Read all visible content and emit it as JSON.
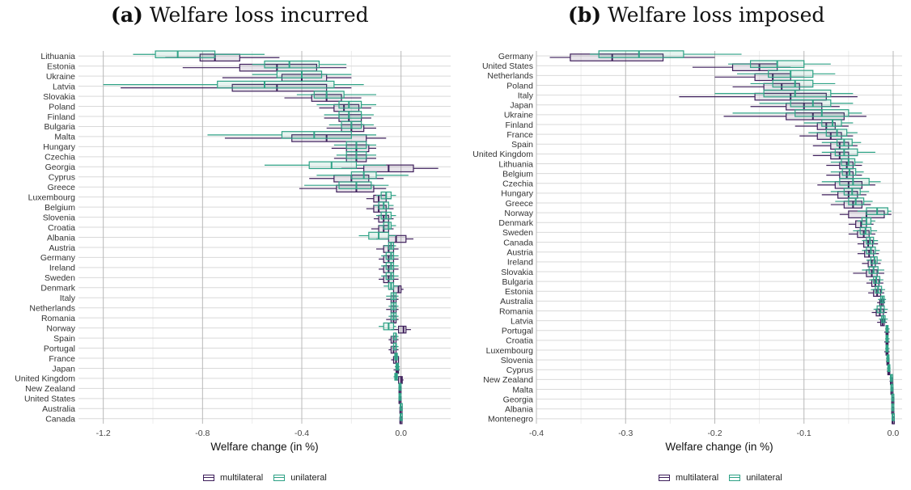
{
  "colors": {
    "multilateral": "#3e1f5b",
    "unilateral": "#2fa286",
    "grid": "#d9d9d9",
    "grid_major": "#b8b8b8"
  },
  "panels": {
    "a": {
      "tag": "(a)",
      "title": "Welfare loss incurred"
    },
    "b": {
      "tag": "(b)",
      "title": "Welfare loss imposed"
    }
  },
  "legend": {
    "multilateral": "multilateral",
    "unilateral": "unilateral"
  },
  "chart_data": [
    {
      "type": "boxplot",
      "title": "(a) Welfare loss incurred",
      "xlabel": "Welfare change (in %)",
      "xlim": [
        -1.3,
        0.2
      ],
      "xticks": [
        -1.2,
        -0.8,
        -0.4,
        0.0
      ],
      "xtick_labels": [
        "-1.2",
        "-0.8",
        "-0.4",
        "0.0"
      ],
      "grid": true,
      "legend_position": "bottom",
      "series_names": [
        "multilateral",
        "unilateral"
      ],
      "categories": [
        "Lithuania",
        "Estonia",
        "Ukraine",
        "Latvia",
        "Slovakia",
        "Poland",
        "Finland",
        "Bulgaria",
        "Malta",
        "Hungary",
        "Czechia",
        "Georgia",
        "Cyprus",
        "Greece",
        "Luxembourg",
        "Belgium",
        "Slovenia",
        "Croatia",
        "Albania",
        "Austria",
        "Germany",
        "Ireland",
        "Sweden",
        "Denmark",
        "Italy",
        "Netherlands",
        "Romania",
        "Norway",
        "Spain",
        "Portugal",
        "France",
        "Japan",
        "United Kingdom",
        "New Zealand",
        "United States",
        "Australia",
        "Canada"
      ],
      "multilateral": [
        [
          -0.95,
          -0.81,
          -0.75,
          -0.65,
          -0.49
        ],
        [
          -0.88,
          -0.65,
          -0.5,
          -0.34,
          -0.22
        ],
        [
          -0.72,
          -0.48,
          -0.4,
          -0.3,
          -0.2
        ],
        [
          -1.13,
          -0.68,
          -0.5,
          -0.3,
          -0.2
        ],
        [
          -0.47,
          -0.36,
          -0.3,
          -0.24,
          -0.16
        ],
        [
          -0.33,
          -0.27,
          -0.23,
          -0.17,
          -0.12
        ],
        [
          -0.31,
          -0.25,
          -0.21,
          -0.16,
          -0.12
        ],
        [
          -0.3,
          -0.24,
          -0.2,
          -0.15,
          -0.1
        ],
        [
          -0.71,
          -0.44,
          -0.3,
          -0.14,
          -0.06
        ],
        [
          -0.28,
          -0.22,
          -0.18,
          -0.13,
          -0.1
        ],
        [
          -0.27,
          -0.22,
          -0.18,
          -0.14,
          -0.1
        ],
        [
          -0.24,
          -0.15,
          -0.05,
          0.05,
          0.15
        ],
        [
          -0.37,
          -0.27,
          -0.2,
          -0.13,
          -0.07
        ],
        [
          -0.41,
          -0.26,
          -0.18,
          -0.11,
          -0.06
        ],
        [
          -0.14,
          -0.11,
          -0.09,
          -0.06,
          -0.04
        ],
        [
          -0.14,
          -0.11,
          -0.09,
          -0.06,
          -0.03
        ],
        [
          -0.11,
          -0.09,
          -0.07,
          -0.05,
          -0.03
        ],
        [
          -0.12,
          -0.09,
          -0.07,
          -0.05,
          -0.03
        ],
        [
          -0.1,
          -0.05,
          -0.02,
          0.02,
          0.05
        ],
        [
          -0.1,
          -0.07,
          -0.05,
          -0.03,
          -0.01
        ],
        [
          -0.09,
          -0.07,
          -0.05,
          -0.03,
          -0.01
        ],
        [
          -0.09,
          -0.07,
          -0.05,
          -0.03,
          -0.01
        ],
        [
          -0.09,
          -0.07,
          -0.05,
          -0.03,
          -0.01
        ],
        [
          -0.05,
          -0.03,
          -0.01,
          0.0,
          0.01
        ],
        [
          -0.06,
          -0.04,
          -0.03,
          -0.02,
          -0.01
        ],
        [
          -0.06,
          -0.04,
          -0.03,
          -0.02,
          -0.01
        ],
        [
          -0.06,
          -0.04,
          -0.03,
          -0.02,
          -0.01
        ],
        [
          -0.04,
          -0.01,
          0.01,
          0.02,
          0.04
        ],
        [
          -0.05,
          -0.04,
          -0.03,
          -0.02,
          -0.01
        ],
        [
          -0.05,
          -0.04,
          -0.03,
          -0.02,
          -0.01
        ],
        [
          -0.04,
          -0.03,
          -0.02,
          -0.01,
          -0.01
        ],
        [
          -0.03,
          -0.02,
          -0.015,
          -0.01,
          -0.005
        ],
        [
          -0.02,
          -0.01,
          0.0,
          0.005,
          0.01
        ],
        [
          -0.01,
          -0.008,
          -0.006,
          -0.004,
          -0.002
        ],
        [
          -0.01,
          -0.008,
          -0.006,
          -0.004,
          -0.002
        ],
        [
          -0.005,
          -0.004,
          -0.003,
          -0.002,
          -0.001
        ],
        [
          -0.005,
          -0.004,
          -0.003,
          -0.002,
          -0.001
        ]
      ],
      "unilateral": [
        [
          -1.08,
          -0.99,
          -0.9,
          -0.75,
          -0.55
        ],
        [
          -0.6,
          -0.55,
          -0.45,
          -0.33,
          -0.22
        ],
        [
          -0.6,
          -0.5,
          -0.4,
          -0.32,
          -0.2
        ],
        [
          -1.2,
          -0.74,
          -0.55,
          -0.27,
          -0.15
        ],
        [
          -0.42,
          -0.35,
          -0.3,
          -0.23,
          -0.1
        ],
        [
          -0.34,
          -0.25,
          -0.21,
          -0.16,
          -0.1
        ],
        [
          -0.31,
          -0.25,
          -0.21,
          -0.16,
          -0.11
        ],
        [
          -0.29,
          -0.24,
          -0.2,
          -0.16,
          -0.11
        ],
        [
          -0.78,
          -0.48,
          -0.35,
          -0.2,
          -0.1
        ],
        [
          -0.27,
          -0.22,
          -0.18,
          -0.14,
          -0.1
        ],
        [
          -0.26,
          -0.22,
          -0.18,
          -0.14,
          -0.1
        ],
        [
          -0.55,
          -0.37,
          -0.28,
          -0.18,
          -0.06
        ],
        [
          -0.34,
          -0.2,
          -0.15,
          -0.1,
          0.03
        ],
        [
          -0.39,
          -0.25,
          -0.18,
          -0.12,
          -0.05
        ],
        [
          -0.1,
          -0.08,
          -0.06,
          -0.04,
          -0.02
        ],
        [
          -0.11,
          -0.09,
          -0.07,
          -0.05,
          -0.03
        ],
        [
          -0.1,
          -0.08,
          -0.06,
          -0.04,
          -0.02
        ],
        [
          -0.09,
          -0.07,
          -0.05,
          -0.04,
          -0.02
        ],
        [
          -0.17,
          -0.13,
          -0.09,
          -0.05,
          -0.02
        ],
        [
          -0.07,
          -0.05,
          -0.04,
          -0.03,
          -0.02
        ],
        [
          -0.08,
          -0.06,
          -0.04,
          -0.03,
          -0.01
        ],
        [
          -0.08,
          -0.06,
          -0.04,
          -0.03,
          -0.01
        ],
        [
          -0.08,
          -0.06,
          -0.04,
          -0.03,
          -0.01
        ],
        [
          -0.07,
          -0.05,
          -0.04,
          -0.03,
          -0.01
        ],
        [
          -0.06,
          -0.04,
          -0.03,
          -0.02,
          -0.01
        ],
        [
          -0.05,
          -0.04,
          -0.03,
          -0.02,
          -0.01
        ],
        [
          -0.05,
          -0.04,
          -0.03,
          -0.02,
          -0.01
        ],
        [
          -0.09,
          -0.07,
          -0.05,
          -0.03,
          -0.02
        ],
        [
          -0.04,
          -0.03,
          -0.02,
          -0.02,
          -0.01
        ],
        [
          -0.04,
          -0.03,
          -0.02,
          -0.02,
          -0.01
        ],
        [
          -0.03,
          -0.025,
          -0.02,
          -0.015,
          -0.01
        ],
        [
          -0.025,
          -0.02,
          -0.015,
          -0.01,
          -0.005
        ],
        [
          -0.03,
          -0.025,
          -0.02,
          -0.015,
          -0.01
        ],
        [
          -0.01,
          -0.008,
          -0.006,
          -0.004,
          -0.002
        ],
        [
          -0.01,
          -0.008,
          -0.006,
          -0.004,
          -0.002
        ],
        [
          -0.004,
          -0.003,
          -0.002,
          -0.001,
          0.0
        ],
        [
          -0.004,
          -0.003,
          -0.002,
          -0.001,
          0.0
        ]
      ]
    },
    {
      "type": "boxplot",
      "title": "(b) Welfare loss imposed",
      "xlabel": "Welfare change (in %)",
      "xlim": [
        -0.4,
        0.01
      ],
      "xticks": [
        -0.4,
        -0.3,
        -0.2,
        -0.1,
        0.0
      ],
      "xtick_labels": [
        "-0.4",
        "-0.3",
        "-0.2",
        "-0.1",
        "0.0"
      ],
      "grid": true,
      "legend_position": "bottom",
      "series_names": [
        "multilateral",
        "unilateral"
      ],
      "categories": [
        "Germany",
        "United States",
        "Netherlands",
        "Poland",
        "Italy",
        "Japan",
        "Ukraine",
        "Finland",
        "France",
        "Spain",
        "United Kingdom",
        "Lithuania",
        "Belgium",
        "Czechia",
        "Hungary",
        "Greece",
        "Norway",
        "Denmark",
        "Sweden",
        "Canada",
        "Austria",
        "Ireland",
        "Slovakia",
        "Bulgaria",
        "Estonia",
        "Australia",
        "Romania",
        "Latvia",
        "Portugal",
        "Croatia",
        "Luxembourg",
        "Slovenia",
        "Cyprus",
        "New Zealand",
        "Malta",
        "Georgia",
        "Albania",
        "Montenegro"
      ],
      "multilateral": [
        [
          -0.385,
          -0.362,
          -0.315,
          -0.258,
          -0.2
        ],
        [
          -0.225,
          -0.18,
          -0.15,
          -0.13,
          -0.115
        ],
        [
          -0.2,
          -0.155,
          -0.135,
          -0.115,
          -0.1
        ],
        [
          -0.18,
          -0.145,
          -0.125,
          -0.105,
          -0.09
        ],
        [
          -0.24,
          -0.155,
          -0.115,
          -0.075,
          -0.04
        ],
        [
          -0.16,
          -0.12,
          -0.1,
          -0.08,
          -0.06
        ],
        [
          -0.19,
          -0.12,
          -0.09,
          -0.055,
          -0.03
        ],
        [
          -0.11,
          -0.085,
          -0.075,
          -0.065,
          -0.05
        ],
        [
          -0.105,
          -0.085,
          -0.07,
          -0.058,
          -0.045
        ],
        [
          -0.09,
          -0.07,
          -0.06,
          -0.05,
          -0.04
        ],
        [
          -0.09,
          -0.07,
          -0.06,
          -0.05,
          -0.04
        ],
        [
          -0.075,
          -0.06,
          -0.052,
          -0.045,
          -0.035
        ],
        [
          -0.075,
          -0.06,
          -0.052,
          -0.045,
          -0.035
        ],
        [
          -0.085,
          -0.065,
          -0.05,
          -0.035,
          -0.02
        ],
        [
          -0.08,
          -0.062,
          -0.05,
          -0.04,
          -0.03
        ],
        [
          -0.07,
          -0.055,
          -0.045,
          -0.035,
          -0.025
        ],
        [
          -0.06,
          -0.05,
          -0.03,
          -0.01,
          -0.002
        ],
        [
          -0.05,
          -0.042,
          -0.036,
          -0.03,
          -0.022
        ],
        [
          -0.05,
          -0.04,
          -0.033,
          -0.027,
          -0.02
        ],
        [
          -0.04,
          -0.033,
          -0.028,
          -0.023,
          -0.017
        ],
        [
          -0.04,
          -0.032,
          -0.027,
          -0.022,
          -0.016
        ],
        [
          -0.035,
          -0.028,
          -0.024,
          -0.02,
          -0.014
        ],
        [
          -0.045,
          -0.03,
          -0.024,
          -0.018,
          -0.01
        ],
        [
          -0.03,
          -0.024,
          -0.02,
          -0.016,
          -0.011
        ],
        [
          -0.028,
          -0.022,
          -0.018,
          -0.014,
          -0.01
        ],
        [
          -0.018,
          -0.015,
          -0.013,
          -0.011,
          -0.009
        ],
        [
          -0.024,
          -0.019,
          -0.015,
          -0.011,
          -0.007
        ],
        [
          -0.018,
          -0.014,
          -0.012,
          -0.01,
          -0.007
        ],
        [
          -0.01,
          -0.008,
          -0.007,
          -0.006,
          -0.004
        ],
        [
          -0.01,
          -0.008,
          -0.007,
          -0.006,
          -0.004
        ],
        [
          -0.01,
          -0.008,
          -0.007,
          -0.006,
          -0.004
        ],
        [
          -0.008,
          -0.007,
          -0.006,
          -0.005,
          -0.004
        ],
        [
          -0.007,
          -0.006,
          -0.005,
          -0.004,
          -0.003
        ],
        [
          -0.004,
          -0.003,
          -0.0025,
          -0.002,
          -0.0015
        ],
        [
          -0.003,
          -0.0025,
          -0.002,
          -0.0015,
          -0.001
        ],
        [
          -0.002,
          -0.0015,
          -0.0012,
          -0.001,
          -0.0005
        ],
        [
          -0.002,
          -0.0015,
          -0.0012,
          -0.001,
          -0.0005
        ],
        [
          -0.0012,
          -0.001,
          -0.0008,
          -0.0006,
          -0.0004
        ]
      ],
      "unilateral": [
        [
          -0.34,
          -0.33,
          -0.285,
          -0.235,
          -0.17
        ],
        [
          -0.185,
          -0.16,
          -0.13,
          -0.1,
          -0.07
        ],
        [
          -0.175,
          -0.14,
          -0.115,
          -0.09,
          -0.065
        ],
        [
          -0.16,
          -0.135,
          -0.11,
          -0.09,
          -0.065
        ],
        [
          -0.2,
          -0.145,
          -0.11,
          -0.07,
          -0.045
        ],
        [
          -0.15,
          -0.115,
          -0.09,
          -0.07,
          -0.045
        ],
        [
          -0.18,
          -0.11,
          -0.08,
          -0.05,
          -0.035
        ],
        [
          -0.1,
          -0.08,
          -0.068,
          -0.058,
          -0.045
        ],
        [
          -0.095,
          -0.075,
          -0.063,
          -0.052,
          -0.04
        ],
        [
          -0.08,
          -0.063,
          -0.055,
          -0.046,
          -0.036
        ],
        [
          -0.08,
          -0.065,
          -0.055,
          -0.04,
          -0.02
        ],
        [
          -0.07,
          -0.058,
          -0.05,
          -0.043,
          -0.034
        ],
        [
          -0.07,
          -0.057,
          -0.049,
          -0.042,
          -0.033
        ],
        [
          -0.08,
          -0.06,
          -0.045,
          -0.027,
          -0.014
        ],
        [
          -0.07,
          -0.055,
          -0.046,
          -0.037,
          -0.027
        ],
        [
          -0.065,
          -0.05,
          -0.042,
          -0.033,
          -0.023
        ],
        [
          -0.04,
          -0.03,
          -0.018,
          -0.006,
          -0.002
        ],
        [
          -0.04,
          -0.035,
          -0.03,
          -0.025,
          -0.02
        ],
        [
          -0.045,
          -0.037,
          -0.031,
          -0.025,
          -0.018
        ],
        [
          -0.035,
          -0.03,
          -0.026,
          -0.022,
          -0.017
        ],
        [
          -0.035,
          -0.03,
          -0.025,
          -0.02,
          -0.015
        ],
        [
          -0.03,
          -0.025,
          -0.021,
          -0.018,
          -0.013
        ],
        [
          -0.035,
          -0.027,
          -0.022,
          -0.017,
          -0.01
        ],
        [
          -0.027,
          -0.022,
          -0.019,
          -0.015,
          -0.011
        ],
        [
          -0.025,
          -0.02,
          -0.017,
          -0.013,
          -0.009
        ],
        [
          -0.017,
          -0.014,
          -0.012,
          -0.01,
          -0.008
        ],
        [
          -0.022,
          -0.018,
          -0.014,
          -0.01,
          -0.006
        ],
        [
          -0.016,
          -0.013,
          -0.011,
          -0.009,
          -0.006
        ],
        [
          -0.009,
          -0.008,
          -0.007,
          -0.006,
          -0.004
        ],
        [
          -0.009,
          -0.008,
          -0.007,
          -0.006,
          -0.004
        ],
        [
          -0.009,
          -0.008,
          -0.007,
          -0.006,
          -0.004
        ],
        [
          -0.008,
          -0.007,
          -0.006,
          -0.005,
          -0.004
        ],
        [
          -0.007,
          -0.006,
          -0.005,
          -0.004,
          -0.003
        ],
        [
          -0.004,
          -0.003,
          -0.0025,
          -0.002,
          -0.0015
        ],
        [
          -0.003,
          -0.0025,
          -0.002,
          -0.0015,
          -0.001
        ],
        [
          -0.002,
          -0.0015,
          -0.0012,
          -0.001,
          -0.0005
        ],
        [
          -0.002,
          -0.0015,
          -0.0012,
          -0.001,
          -0.0005
        ],
        [
          -0.0012,
          -0.001,
          -0.0008,
          -0.0006,
          -0.0004
        ]
      ]
    }
  ]
}
